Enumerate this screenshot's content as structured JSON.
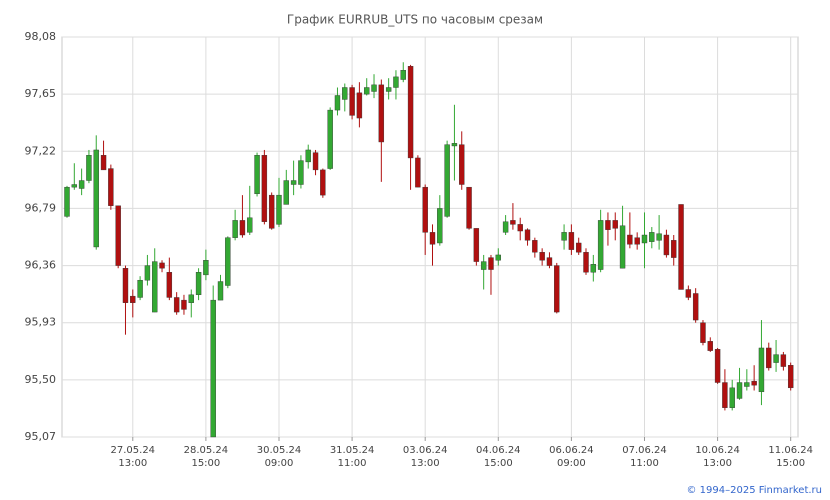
{
  "chart_data": {
    "type": "candlestick",
    "title": "График EURRUB_UTS по часовым срезам",
    "credit": "© 1994–2025 Finmarket.ru",
    "categories": [
      null,
      null,
      null,
      null,
      null,
      null,
      null,
      null,
      null,
      "27.05.24\n13:00",
      null,
      null,
      null,
      null,
      null,
      null,
      null,
      null,
      null,
      "28.05.24\n15:00",
      null,
      null,
      null,
      null,
      null,
      null,
      null,
      null,
      null,
      "30.05.24\n09:00",
      null,
      null,
      null,
      null,
      null,
      null,
      null,
      null,
      null,
      "31.05.24\n11:00",
      null,
      null,
      null,
      null,
      null,
      null,
      null,
      null,
      null,
      "03.06.24\n13:00",
      null,
      null,
      null,
      null,
      null,
      null,
      null,
      null,
      null,
      "04.06.24\n15:00",
      null,
      null,
      null,
      null,
      null,
      null,
      null,
      null,
      null,
      "06.06.24\n09:00",
      null,
      null,
      null,
      null,
      null,
      null,
      null,
      null,
      null,
      "07.06.24\n11:00",
      null,
      null,
      null,
      null,
      null,
      null,
      null,
      null,
      null,
      "10.06.24\n13:00",
      null,
      null,
      null,
      null,
      null,
      null,
      null,
      null,
      null,
      "11.06.24\n15:00"
    ],
    "up_color": "#33a833",
    "down_color": "#b01010",
    "open": [
      96.73,
      96.95,
      96.94,
      97.0,
      96.5,
      97.19,
      97.09,
      96.81,
      96.34,
      96.13,
      96.12,
      96.25,
      96.01,
      96.38,
      96.31,
      96.12,
      96.1,
      96.08,
      96.14,
      96.29,
      95.07,
      96.1,
      96.21,
      96.57,
      96.7,
      96.61,
      96.9,
      97.19,
      96.89,
      96.67,
      96.82,
      96.97,
      96.97,
      97.14,
      97.21,
      97.08,
      97.09,
      97.53,
      97.61,
      97.7,
      97.66,
      97.65,
      97.67,
      97.72,
      97.67,
      97.7,
      97.76,
      97.86,
      97.17,
      96.95,
      96.61,
      96.53,
      96.73,
      97.26,
      97.27,
      96.95,
      96.64,
      96.33,
      96.42,
      96.4,
      96.61,
      96.7,
      96.67,
      96.63,
      96.55,
      96.46,
      96.42,
      96.36,
      96.55,
      96.61,
      96.53,
      96.46,
      96.31,
      96.33,
      96.7,
      96.7,
      96.34,
      96.59,
      96.57,
      96.53,
      96.54,
      96.55,
      96.59,
      96.55,
      96.82,
      96.18,
      96.15,
      95.93,
      95.79,
      95.73,
      95.48,
      95.29,
      95.36,
      95.45,
      95.49,
      95.41,
      95.74,
      95.63,
      95.69,
      95.61
    ],
    "high": [
      96.96,
      97.13,
      97.09,
      97.23,
      97.34,
      97.3,
      97.12,
      96.81,
      96.36,
      96.18,
      96.28,
      96.44,
      96.49,
      96.4,
      96.42,
      96.16,
      96.14,
      96.18,
      96.34,
      96.48,
      96.21,
      96.29,
      96.58,
      96.78,
      96.89,
      96.96,
      97.21,
      97.23,
      96.91,
      97.02,
      97.08,
      97.15,
      97.19,
      97.27,
      97.23,
      97.09,
      97.55,
      97.7,
      97.73,
      97.72,
      97.74,
      97.77,
      97.8,
      97.76,
      97.77,
      97.83,
      97.89,
      97.87,
      97.19,
      96.97,
      96.67,
      96.89,
      97.3,
      97.57,
      97.37,
      96.95,
      96.64,
      96.44,
      96.44,
      96.49,
      96.74,
      96.83,
      96.72,
      96.64,
      96.57,
      96.49,
      96.46,
      96.38,
      96.67,
      96.67,
      96.57,
      96.49,
      96.44,
      96.78,
      96.76,
      96.76,
      96.81,
      96.76,
      96.61,
      96.76,
      96.65,
      96.74,
      96.63,
      96.59,
      96.82,
      96.21,
      96.19,
      95.95,
      95.82,
      95.74,
      95.58,
      95.5,
      95.59,
      95.58,
      95.61,
      95.95,
      95.78,
      95.8,
      95.71,
      95.63
    ],
    "low": [
      96.72,
      96.93,
      96.89,
      96.98,
      96.48,
      97.08,
      96.78,
      96.34,
      95.84,
      95.97,
      96.1,
      96.21,
      96.01,
      96.31,
      96.1,
      95.99,
      95.99,
      95.97,
      96.1,
      96.25,
      95.07,
      96.1,
      96.19,
      96.55,
      96.57,
      96.59,
      96.88,
      96.67,
      96.63,
      96.65,
      96.82,
      96.89,
      96.94,
      97.09,
      97.04,
      96.87,
      97.08,
      97.49,
      97.52,
      97.46,
      97.4,
      97.64,
      97.62,
      96.99,
      97.61,
      97.61,
      97.74,
      96.93,
      96.95,
      96.44,
      96.36,
      96.51,
      96.72,
      97.0,
      96.93,
      96.63,
      96.36,
      96.18,
      96.14,
      96.36,
      96.59,
      96.63,
      96.55,
      96.51,
      96.42,
      96.36,
      96.34,
      96.0,
      96.48,
      96.44,
      96.44,
      96.29,
      96.24,
      96.31,
      96.51,
      96.55,
      96.34,
      96.49,
      96.48,
      96.34,
      96.49,
      96.48,
      96.42,
      96.36,
      96.18,
      96.1,
      95.93,
      95.76,
      95.71,
      95.47,
      95.27,
      95.27,
      95.35,
      95.42,
      95.42,
      95.31,
      95.57,
      95.56,
      95.57,
      95.42
    ],
    "close": [
      96.95,
      96.97,
      97.0,
      97.19,
      97.23,
      97.08,
      96.81,
      96.36,
      96.08,
      96.08,
      96.25,
      96.36,
      96.39,
      96.34,
      96.12,
      96.01,
      96.03,
      96.14,
      96.31,
      96.4,
      96.1,
      96.24,
      96.57,
      96.7,
      96.59,
      96.72,
      97.19,
      96.69,
      96.64,
      96.89,
      97.0,
      97.0,
      97.15,
      97.23,
      97.08,
      96.89,
      97.53,
      97.64,
      97.7,
      97.49,
      97.47,
      97.7,
      97.72,
      97.29,
      97.7,
      97.78,
      97.83,
      97.17,
      96.95,
      96.61,
      96.52,
      96.79,
      97.27,
      97.28,
      96.97,
      96.64,
      96.39,
      96.39,
      96.33,
      96.44,
      96.69,
      96.67,
      96.62,
      96.55,
      96.46,
      96.4,
      96.36,
      96.01,
      96.61,
      96.48,
      96.46,
      96.31,
      96.37,
      96.7,
      96.63,
      96.64,
      96.66,
      96.52,
      96.52,
      96.59,
      96.61,
      96.6,
      96.44,
      96.42,
      96.18,
      96.12,
      95.95,
      95.78,
      95.72,
      95.48,
      95.29,
      95.44,
      95.48,
      95.48,
      95.46,
      95.74,
      95.59,
      95.69,
      95.6,
      95.44
    ],
    "ylim": [
      95.07,
      98.08
    ],
    "yticks": [
      {
        "value": 95.07,
        "label": "95,07"
      },
      {
        "value": 95.5,
        "label": "95,50"
      },
      {
        "value": 95.93,
        "label": "95,93"
      },
      {
        "value": 96.36,
        "label": "96,36"
      },
      {
        "value": 96.79,
        "label": "96,79"
      },
      {
        "value": 97.22,
        "label": "97,22"
      },
      {
        "value": 97.65,
        "label": "97,65"
      },
      {
        "value": 98.08,
        "label": "98,08"
      }
    ],
    "grid": true
  }
}
